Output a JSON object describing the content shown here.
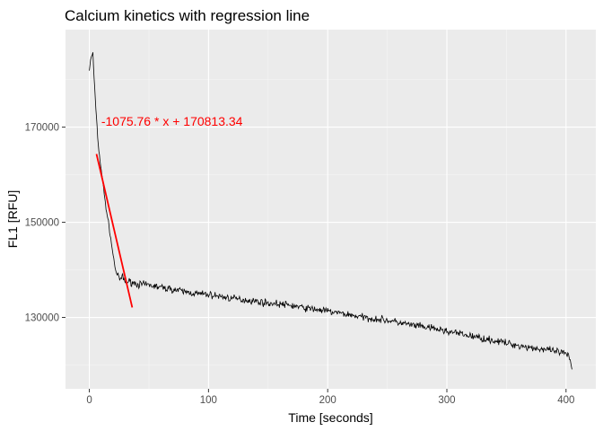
{
  "colors": {
    "panel_background": "#ebebeb",
    "grid_major": "#ffffff",
    "grid_minor": "#f5f5f5",
    "series_line": "#000000",
    "regression_line": "#ff0000",
    "annotation": "#ff0000",
    "tick_mark": "#333333"
  },
  "chart_data": {
    "type": "line",
    "title": "Calcium kinetics with regression line",
    "xlabel": "Time [seconds]",
    "ylabel": "FL1 [RFU]",
    "xlim": [
      -20,
      425
    ],
    "ylim": [
      115000,
      190500
    ],
    "x_ticks": [
      0,
      100,
      200,
      300,
      400
    ],
    "x_tick_labels": [
      "0",
      "100",
      "200",
      "300",
      "400"
    ],
    "y_ticks": [
      130000,
      150000,
      170000
    ],
    "y_tick_labels": [
      "130000",
      "150000",
      "170000"
    ],
    "grid": true,
    "legend": "none",
    "series": [
      {
        "role": "measurement",
        "x": [
          0,
          1,
          2,
          3,
          4,
          5,
          6,
          7,
          8,
          9,
          10,
          12,
          14,
          16,
          18,
          20,
          22,
          24,
          26,
          28,
          30,
          35,
          40,
          50,
          60,
          70,
          80,
          90,
          100,
          110,
          120,
          130,
          140,
          150,
          160,
          170,
          180,
          190,
          200,
          210,
          220,
          230,
          240,
          250,
          260,
          270,
          280,
          290,
          300,
          310,
          320,
          330,
          340,
          350,
          360,
          370,
          380,
          390,
          398,
          400,
          402,
          404,
          405
        ],
        "y": [
          182000,
          184000,
          185000,
          185500,
          180000,
          176000,
          172000,
          168000,
          165000,
          163000,
          161000,
          157000,
          153000,
          150000,
          146500,
          143000,
          140000,
          138500,
          138000,
          138500,
          137500,
          137500,
          137000,
          136800,
          136300,
          135900,
          135400,
          135000,
          134800,
          134400,
          134000,
          133700,
          133400,
          133000,
          132800,
          132500,
          132000,
          131700,
          131300,
          130900,
          130500,
          130000,
          129700,
          129400,
          128900,
          128400,
          128000,
          127600,
          127100,
          126600,
          126100,
          125600,
          125100,
          124600,
          124100,
          123700,
          123300,
          122900,
          122500,
          122200,
          121800,
          120500,
          119000
        ]
      },
      {
        "role": "regression",
        "x": [
          6,
          36
        ],
        "y": [
          164358.78,
          132086.06
        ]
      }
    ],
    "annotations": [
      {
        "text": "-1075.76 * x + 170813.34",
        "x": 10,
        "y": 170300
      }
    ]
  }
}
